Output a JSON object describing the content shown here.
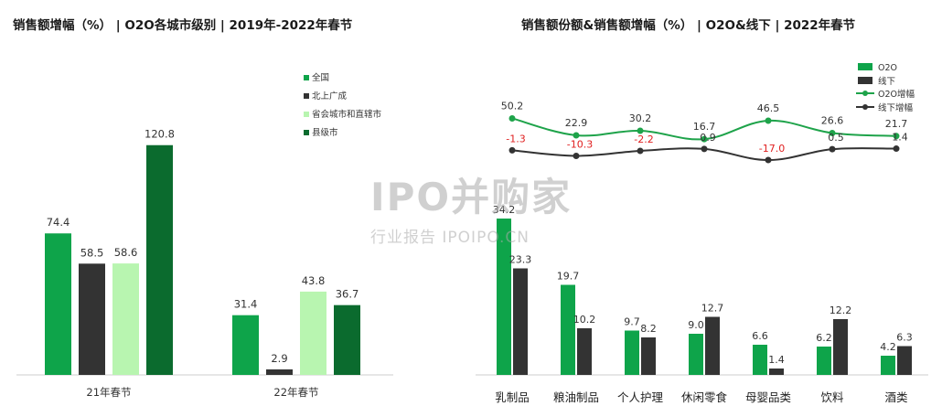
{
  "charts": {
    "left_title": "销售额增幅（%） | O2O各城市级别 | 2019年-2022年春节",
    "right_title": "销售额份额&销售额增幅（%） | O2O&线下 | 2022年春节"
  },
  "watermark": {
    "main": "IPO并购家",
    "sub": "行业报告 IPOIPO.CN"
  },
  "colors": {
    "national": "#0ea44a",
    "tier1": "#333333",
    "provincial": "#b8f5b0",
    "county": "#0b6b2e",
    "o2o": "#0ea44a",
    "offline": "#333333",
    "o2o_growth": "#1ea34a",
    "offline_growth": "#333333",
    "negative_label": "#e02020"
  },
  "chart_data": [
    {
      "type": "bar",
      "title": "销售额增幅（%） | O2O各城市级别 | 2019年-2022年春节",
      "categories": [
        "21年春节",
        "22年春节"
      ],
      "series": [
        {
          "name": "全国",
          "values": [
            74.4,
            31.4
          ]
        },
        {
          "name": "北上广成",
          "values": [
            58.5,
            2.9
          ]
        },
        {
          "name": "省会城市和直辖市",
          "values": [
            58.6,
            43.8
          ]
        },
        {
          "name": "县级市",
          "values": [
            120.8,
            36.7
          ]
        }
      ],
      "ylim": [
        0,
        130
      ],
      "legend": "top-right",
      "grid": false
    },
    {
      "type": "bar",
      "title": "销售额份额&销售额增幅（%） | O2O&线下 | 2022年春节",
      "categories": [
        "乳制品",
        "粮油制品",
        "个人护理",
        "休闲零食",
        "母婴品类",
        "饮料",
        "酒类"
      ],
      "series": [
        {
          "name": "O2O",
          "kind": "bar",
          "values": [
            34.2,
            19.7,
            9.7,
            9.0,
            6.6,
            6.2,
            4.2
          ]
        },
        {
          "name": "线下",
          "kind": "bar",
          "values": [
            23.3,
            10.2,
            8.2,
            12.7,
            1.4,
            12.2,
            6.3
          ]
        },
        {
          "name": "O2O增幅",
          "kind": "line",
          "values": [
            50.2,
            22.9,
            30.2,
            16.7,
            46.5,
            26.6,
            21.7
          ]
        },
        {
          "name": "线下增幅",
          "kind": "line",
          "values": [
            -1.3,
            -10.3,
            -2.2,
            0.9,
            -17.0,
            0.5,
            1.4
          ]
        }
      ],
      "legend": "top-right",
      "grid": false
    }
  ]
}
